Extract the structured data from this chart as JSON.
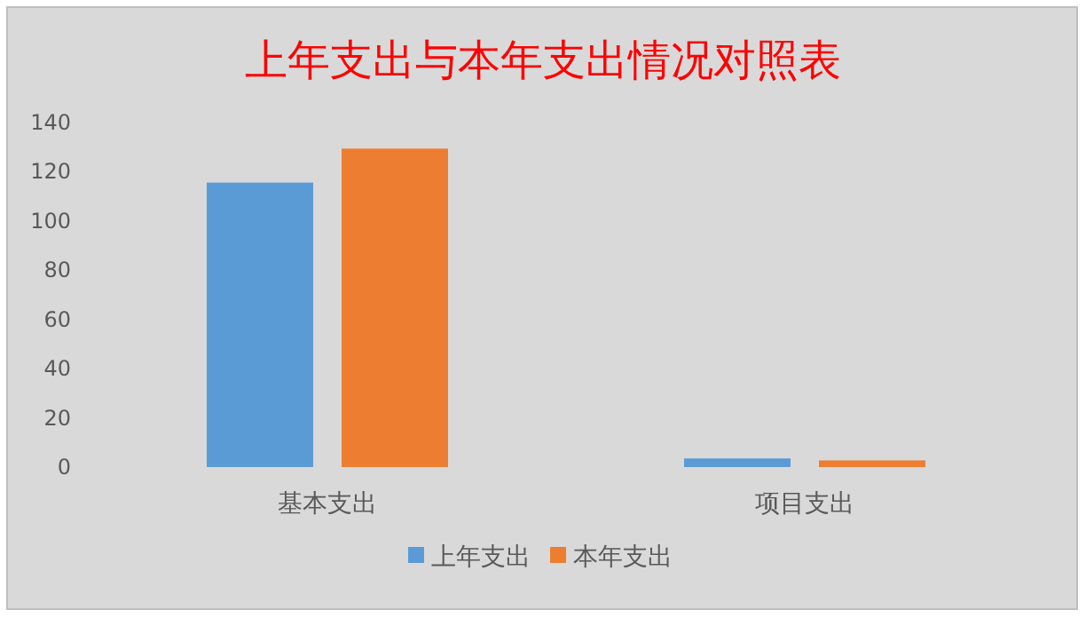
{
  "chart_data": {
    "type": "bar",
    "title": "上年支出与本年支出情况对照表",
    "categories": [
      "基本支出",
      "项目支出"
    ],
    "series": [
      {
        "name": "上年支出",
        "color": "#5b9bd5",
        "values": [
          115.6,
          3.5
        ]
      },
      {
        "name": "本年支出",
        "color": "#ed7d31",
        "values": [
          129.4,
          2.7
        ]
      }
    ],
    "ylim": [
      0,
      140
    ],
    "yticks": [
      0,
      20,
      40,
      60,
      80,
      100,
      120,
      140
    ],
    "grid": false,
    "legend": "bottom"
  }
}
